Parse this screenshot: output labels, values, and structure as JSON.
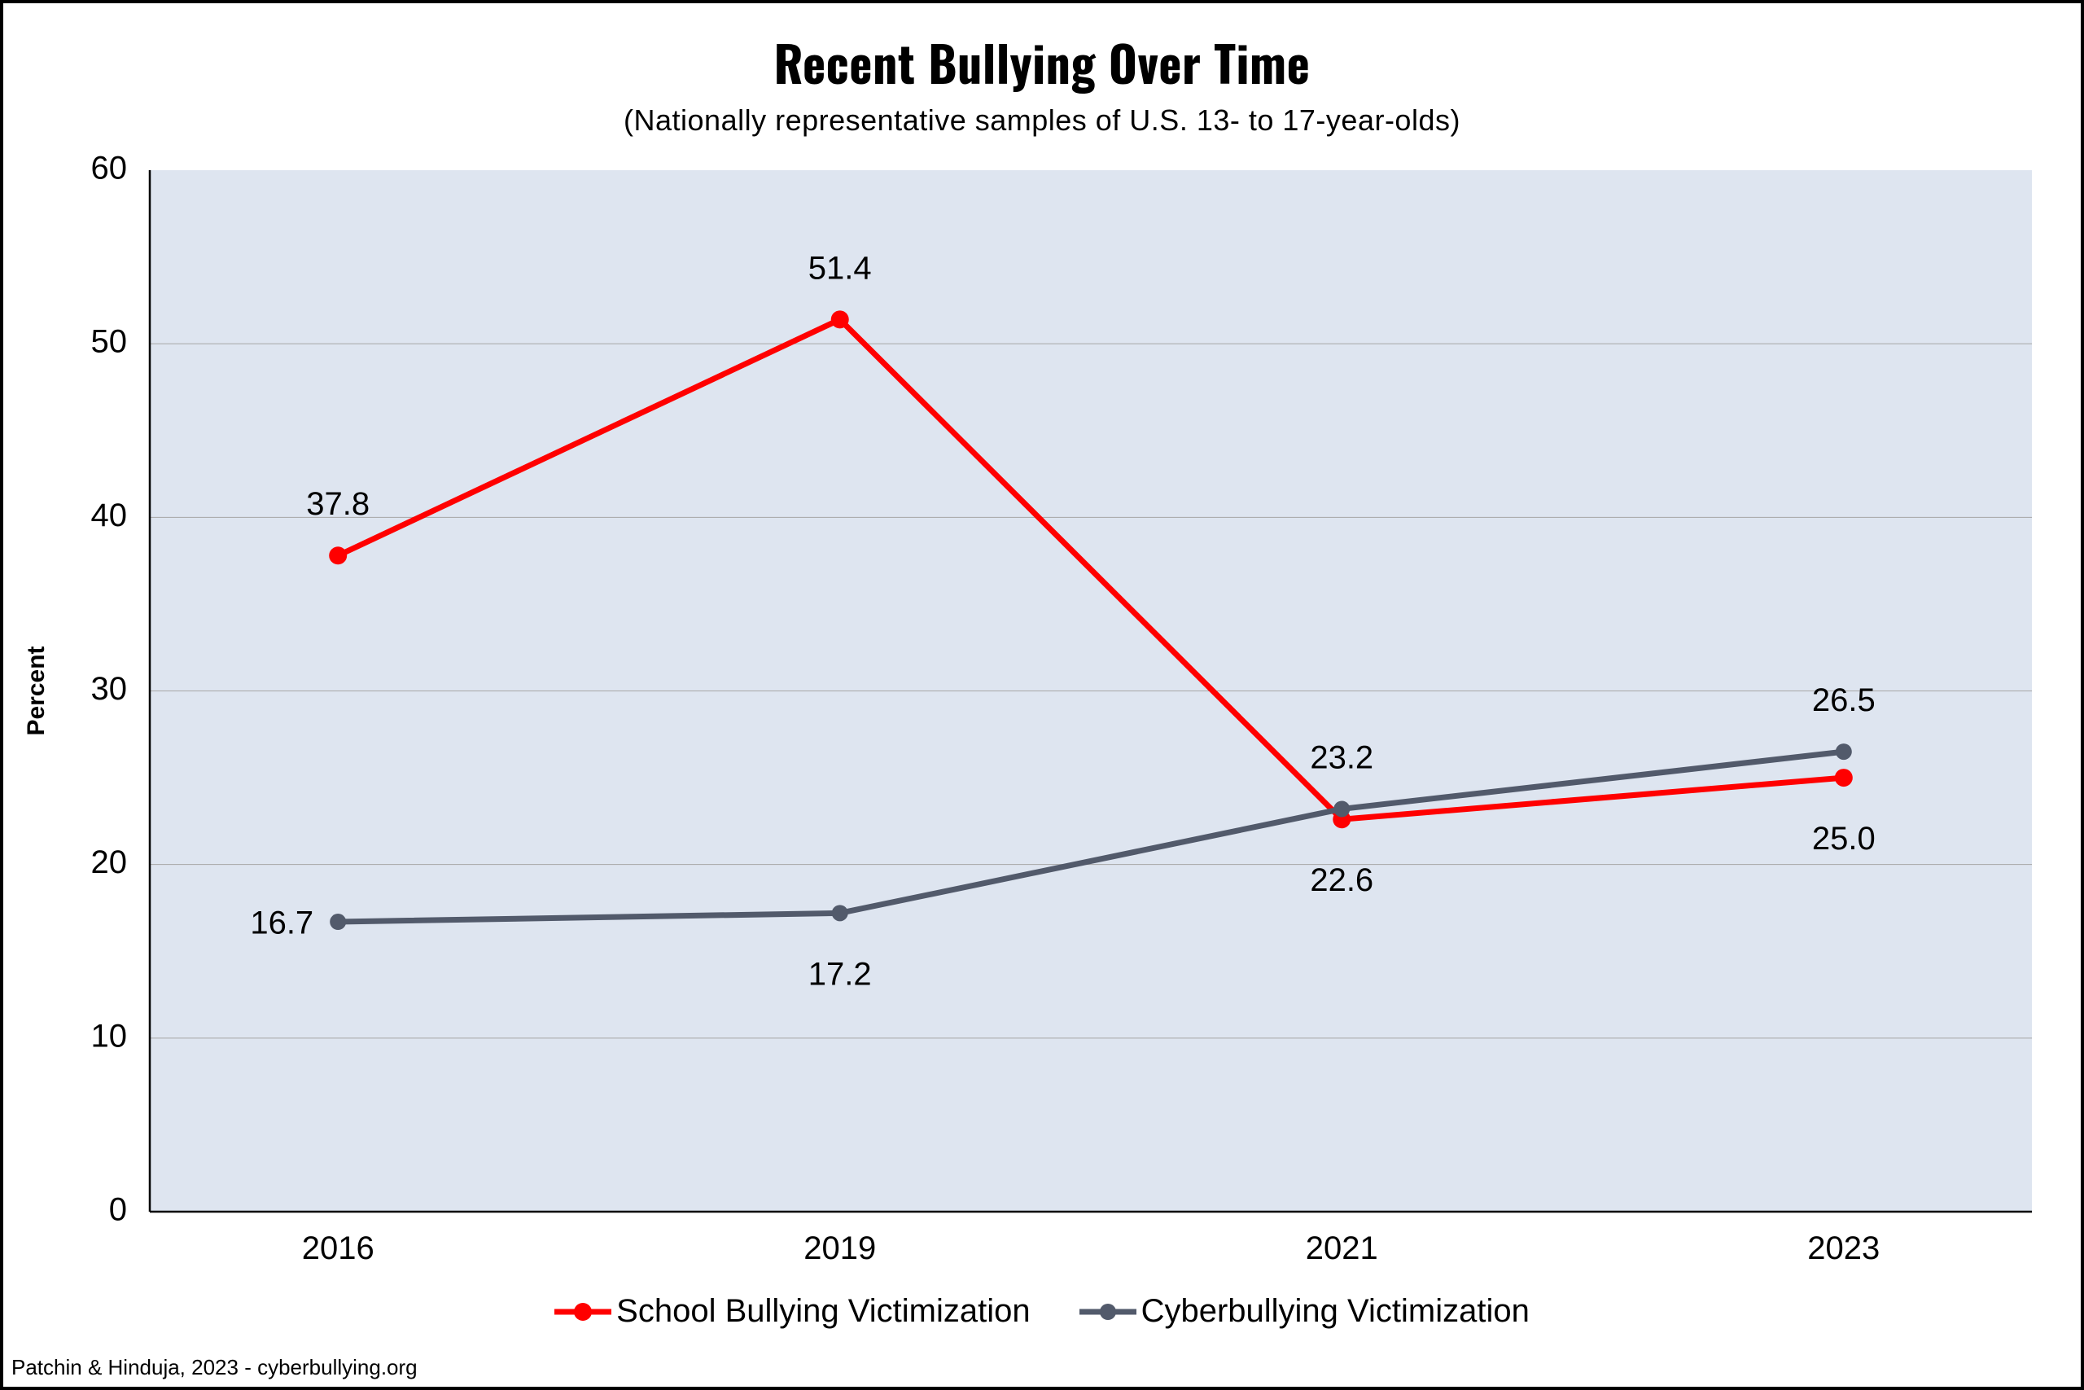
{
  "chart": {
    "type": "line",
    "title": "Recent Bullying Over Time",
    "subtitle": "(Nationally representative samples of U.S. 13- to 17-year-olds)",
    "title_fontsize": 60,
    "title_color": "#000000",
    "subtitle_fontsize": 36,
    "subtitle_color": "#000000",
    "ylabel": "Percent",
    "ylabel_fontsize": 30,
    "axis_tick_fontsize": 40,
    "data_label_fontsize": 40,
    "axis_tick_color": "#000000",
    "data_label_color": "#000000",
    "legend_fontsize": 40,
    "footer": "Patchin & Hinduja, 2023 - cyberbullying.org",
    "footer_fontsize": 26,
    "footer_color": "#000000",
    "background_color": "#ffffff",
    "plot_background_color": "#dee5f0",
    "grid_color": "#a6a6a6",
    "grid_width": 1,
    "axis_line_color": "#000000",
    "axis_line_width": 2.5,
    "ylim": [
      0,
      60
    ],
    "ytick_step": 10,
    "categories": [
      "2016",
      "2019",
      "2021",
      "2023"
    ],
    "series": [
      {
        "name": "School Bullying Victimization",
        "color": "#ff0000",
        "line_width": 7,
        "marker_radius": 11,
        "values": [
          37.8,
          51.4,
          22.6,
          25.0
        ],
        "label_positions": [
          "above",
          "above",
          "below",
          "below"
        ]
      },
      {
        "name": "Cyberbullying Victimization",
        "color": "#525a6b",
        "line_width": 7,
        "marker_radius": 10,
        "values": [
          16.7,
          17.2,
          23.2,
          26.5
        ],
        "label_positions": [
          "left",
          "below",
          "above",
          "above"
        ]
      }
    ]
  }
}
